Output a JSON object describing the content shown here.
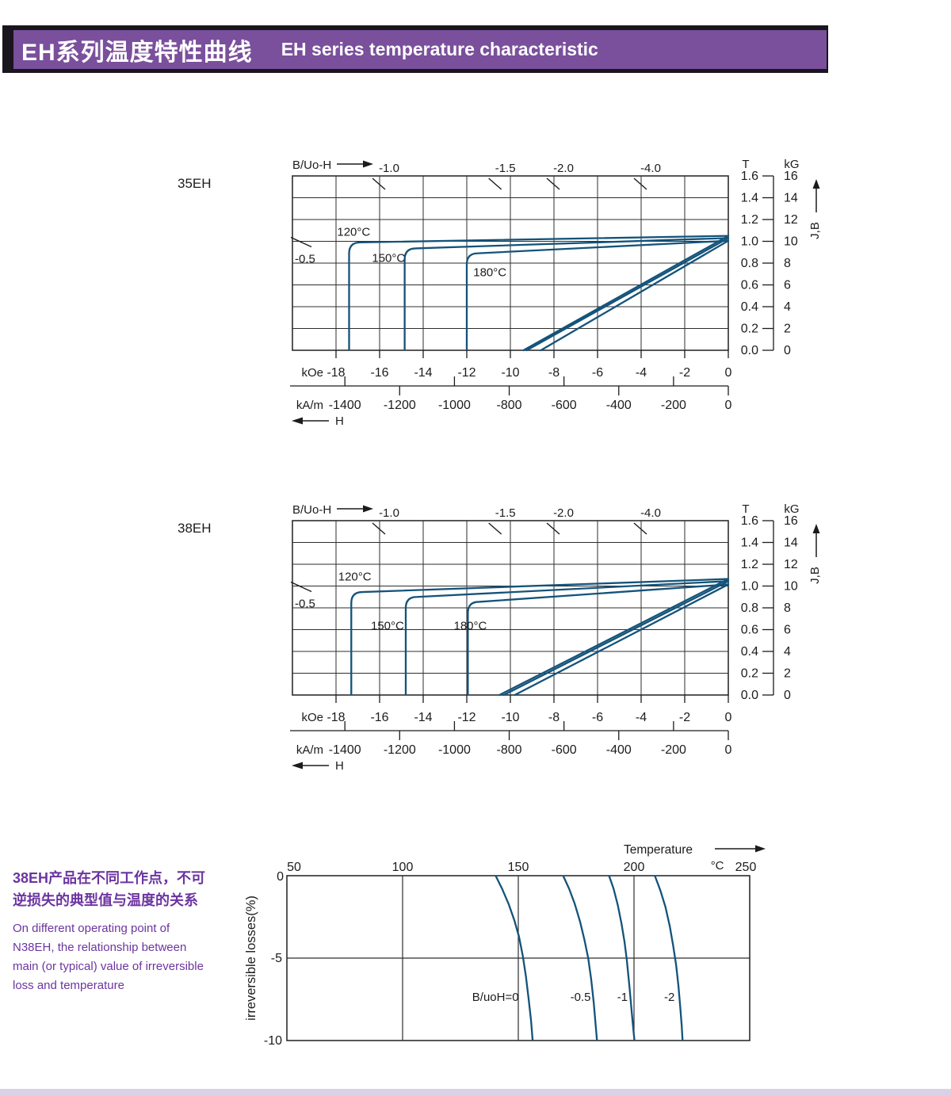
{
  "header": {
    "title_zh": "EH系列温度特性曲线",
    "title_en": "EH  series temperature characteristic"
  },
  "colors": {
    "banner_bg": "#7a4f9c",
    "banner_border": "#19161d",
    "accent_text": "#6c35a0",
    "curve": "#14537a",
    "grid": "#2d2d2d",
    "text": "#1c1c1c"
  },
  "note": {
    "zh": "38EH产品在不同工作点，不可\n逆损失的典型值与温度的关系",
    "en": "On different operating point of\nN38EH,  the relationship between\nmain (or typical) value of irreversible\nloss and temperature"
  },
  "chart_data": [
    {
      "type": "line",
      "name": "35EH",
      "axis_top_label": "B/Uo-H",
      "x_axis": {
        "unit_primary": "kOe",
        "ticks_primary": [
          -18,
          -16,
          -14,
          -12,
          -10,
          -8,
          -6,
          -4,
          -2,
          0
        ],
        "unit_secondary": "kA/m",
        "ticks_secondary": [
          -1400,
          -1200,
          -1000,
          -800,
          -600,
          -400,
          -200,
          0
        ],
        "range_kOe": [
          -20,
          0
        ],
        "arrow_label": "H"
      },
      "y_axis": {
        "unit_tesla": "T",
        "ticks_tesla": [
          "1.6",
          "1.4",
          "1.2",
          "1.0",
          "0.8",
          "0.6",
          "0.4",
          "0.2",
          "0.0"
        ],
        "unit_gauss": "kG",
        "ticks_gauss": [
          16,
          14,
          12,
          10,
          8,
          6,
          4,
          2,
          0
        ],
        "range_T": [
          0,
          1.6
        ],
        "arrow_label": "J,B"
      },
      "load_lines": [
        {
          "label": "-1.0",
          "ratio": 1.0
        },
        {
          "label": "-1.5",
          "ratio": 1.5
        },
        {
          "label": "-2.0",
          "ratio": 2.0
        },
        {
          "label": "-4.0",
          "ratio": 4.0
        },
        {
          "label": "-0.5",
          "ratio": 0.5
        }
      ],
      "curves": [
        {
          "label": "120°C",
          "Hcj_kOe": -17.4,
          "J_knee_T": 0.99,
          "Br_T": 1.05,
          "B_intercept_kOe": -9.4,
          "label_pos": [
            -17.95,
            1.05
          ]
        },
        {
          "label": "150°C",
          "Hcj_kOe": -14.85,
          "J_knee_T": 0.935,
          "Br_T": 1.03,
          "B_intercept_kOe": -9.25,
          "label_pos": [
            -16.35,
            0.81
          ]
        },
        {
          "label": "180°C",
          "Hcj_kOe": -12.0,
          "J_knee_T": 0.89,
          "Br_T": 1.005,
          "B_intercept_kOe": -8.6,
          "label_pos": [
            -11.7,
            0.68
          ]
        }
      ]
    },
    {
      "type": "line",
      "name": "38EH",
      "axis_top_label": "B/Uo-H",
      "x_axis": {
        "unit_primary": "kOe",
        "ticks_primary": [
          -18,
          -16,
          -14,
          -12,
          -10,
          -8,
          -6,
          -4,
          -2,
          0
        ],
        "unit_secondary": "kA/m",
        "ticks_secondary": [
          -1400,
          -1200,
          -1000,
          -800,
          -600,
          -400,
          -200,
          0
        ],
        "range_kOe": [
          -20,
          0
        ],
        "arrow_label": "H"
      },
      "y_axis": {
        "unit_tesla": "T",
        "ticks_tesla": [
          "1.6",
          "1.4",
          "1.2",
          "1.0",
          "0.8",
          "0.6",
          "0.4",
          "0.2",
          "0.0"
        ],
        "unit_gauss": "kG",
        "ticks_gauss": [
          16,
          14,
          12,
          10,
          8,
          6,
          4,
          2,
          0
        ],
        "range_T": [
          0,
          1.6
        ],
        "arrow_label": "J,B"
      },
      "load_lines": [
        {
          "label": "-1.0",
          "ratio": 1.0
        },
        {
          "label": "-1.5",
          "ratio": 1.5
        },
        {
          "label": "-2.0",
          "ratio": 2.0
        },
        {
          "label": "-4.0",
          "ratio": 4.0
        },
        {
          "label": "-0.5",
          "ratio": 0.5
        }
      ],
      "curves": [
        {
          "label": "120°C",
          "Hcj_kOe": -17.3,
          "J_knee_T": 0.945,
          "Br_T": 1.065,
          "B_intercept_kOe": -10.5,
          "label_pos": [
            -17.9,
            1.05
          ]
        },
        {
          "label": "150°C",
          "Hcj_kOe": -14.8,
          "J_knee_T": 0.9,
          "Br_T": 1.045,
          "B_intercept_kOe": -10.3,
          "label_pos": [
            -16.4,
            0.6
          ]
        },
        {
          "label": "180°C",
          "Hcj_kOe": -11.95,
          "J_knee_T": 0.855,
          "Br_T": 1.015,
          "B_intercept_kOe": -9.8,
          "label_pos": [
            -12.6,
            0.6
          ]
        }
      ]
    },
    {
      "type": "line",
      "name": "irreversible-loss-38EH",
      "x_axis": {
        "label": "Temperature",
        "unit": "°C",
        "ticks": [
          50,
          100,
          150,
          200,
          250
        ],
        "range": [
          50,
          250
        ]
      },
      "y_axis": {
        "label": "irreversible  losses(%)",
        "ticks": [
          0,
          -5,
          -10
        ],
        "range": [
          -10,
          0
        ]
      },
      "series": [
        {
          "label": "B/uoH=0",
          "label_anchor": "end",
          "label_pos": [
            150.2,
            -7.6
          ],
          "points": [
            [
              140.2,
              0
            ],
            [
              143,
              -0.8
            ],
            [
              145.8,
              -1.7
            ],
            [
              148.3,
              -2.7
            ],
            [
              150.3,
              -3.7
            ],
            [
              152,
              -4.9
            ],
            [
              153.3,
              -6.1
            ],
            [
              154.5,
              -7.5
            ],
            [
              155.5,
              -8.8
            ],
            [
              156.2,
              -10
            ]
          ]
        },
        {
          "label": "-0.5",
          "label_anchor": "middle",
          "label_pos": [
            176.9,
            -7.6
          ],
          "points": [
            [
              169.4,
              0
            ],
            [
              172,
              -0.8
            ],
            [
              174.4,
              -1.7
            ],
            [
              176.7,
              -2.8
            ],
            [
              178.6,
              -3.9
            ],
            [
              180.2,
              -5
            ],
            [
              181.5,
              -6.3
            ],
            [
              182.6,
              -7.7
            ],
            [
              183.4,
              -9
            ],
            [
              184,
              -10
            ]
          ]
        },
        {
          "label": "-1",
          "label_anchor": "middle",
          "label_pos": [
            195,
            -7.6
          ],
          "points": [
            [
              189.2,
              0
            ],
            [
              191.2,
              -0.8
            ],
            [
              193,
              -1.8
            ],
            [
              194.6,
              -2.9
            ],
            [
              195.9,
              -4
            ],
            [
              196.9,
              -5.1
            ],
            [
              198,
              -6.7
            ],
            [
              198.9,
              -8.1
            ],
            [
              199.7,
              -9.3
            ],
            [
              200.2,
              -10
            ]
          ]
        },
        {
          "label": "-2",
          "label_anchor": "middle",
          "label_pos": [
            215.3,
            -7.6
          ],
          "points": [
            [
              209,
              0
            ],
            [
              211.4,
              -0.9
            ],
            [
              213.6,
              -1.9
            ],
            [
              215.5,
              -3.1
            ],
            [
              217,
              -4.3
            ],
            [
              218.2,
              -5.4
            ],
            [
              219.2,
              -6.7
            ],
            [
              220,
              -8
            ],
            [
              220.6,
              -9.1
            ],
            [
              221,
              -10
            ]
          ]
        }
      ]
    }
  ]
}
